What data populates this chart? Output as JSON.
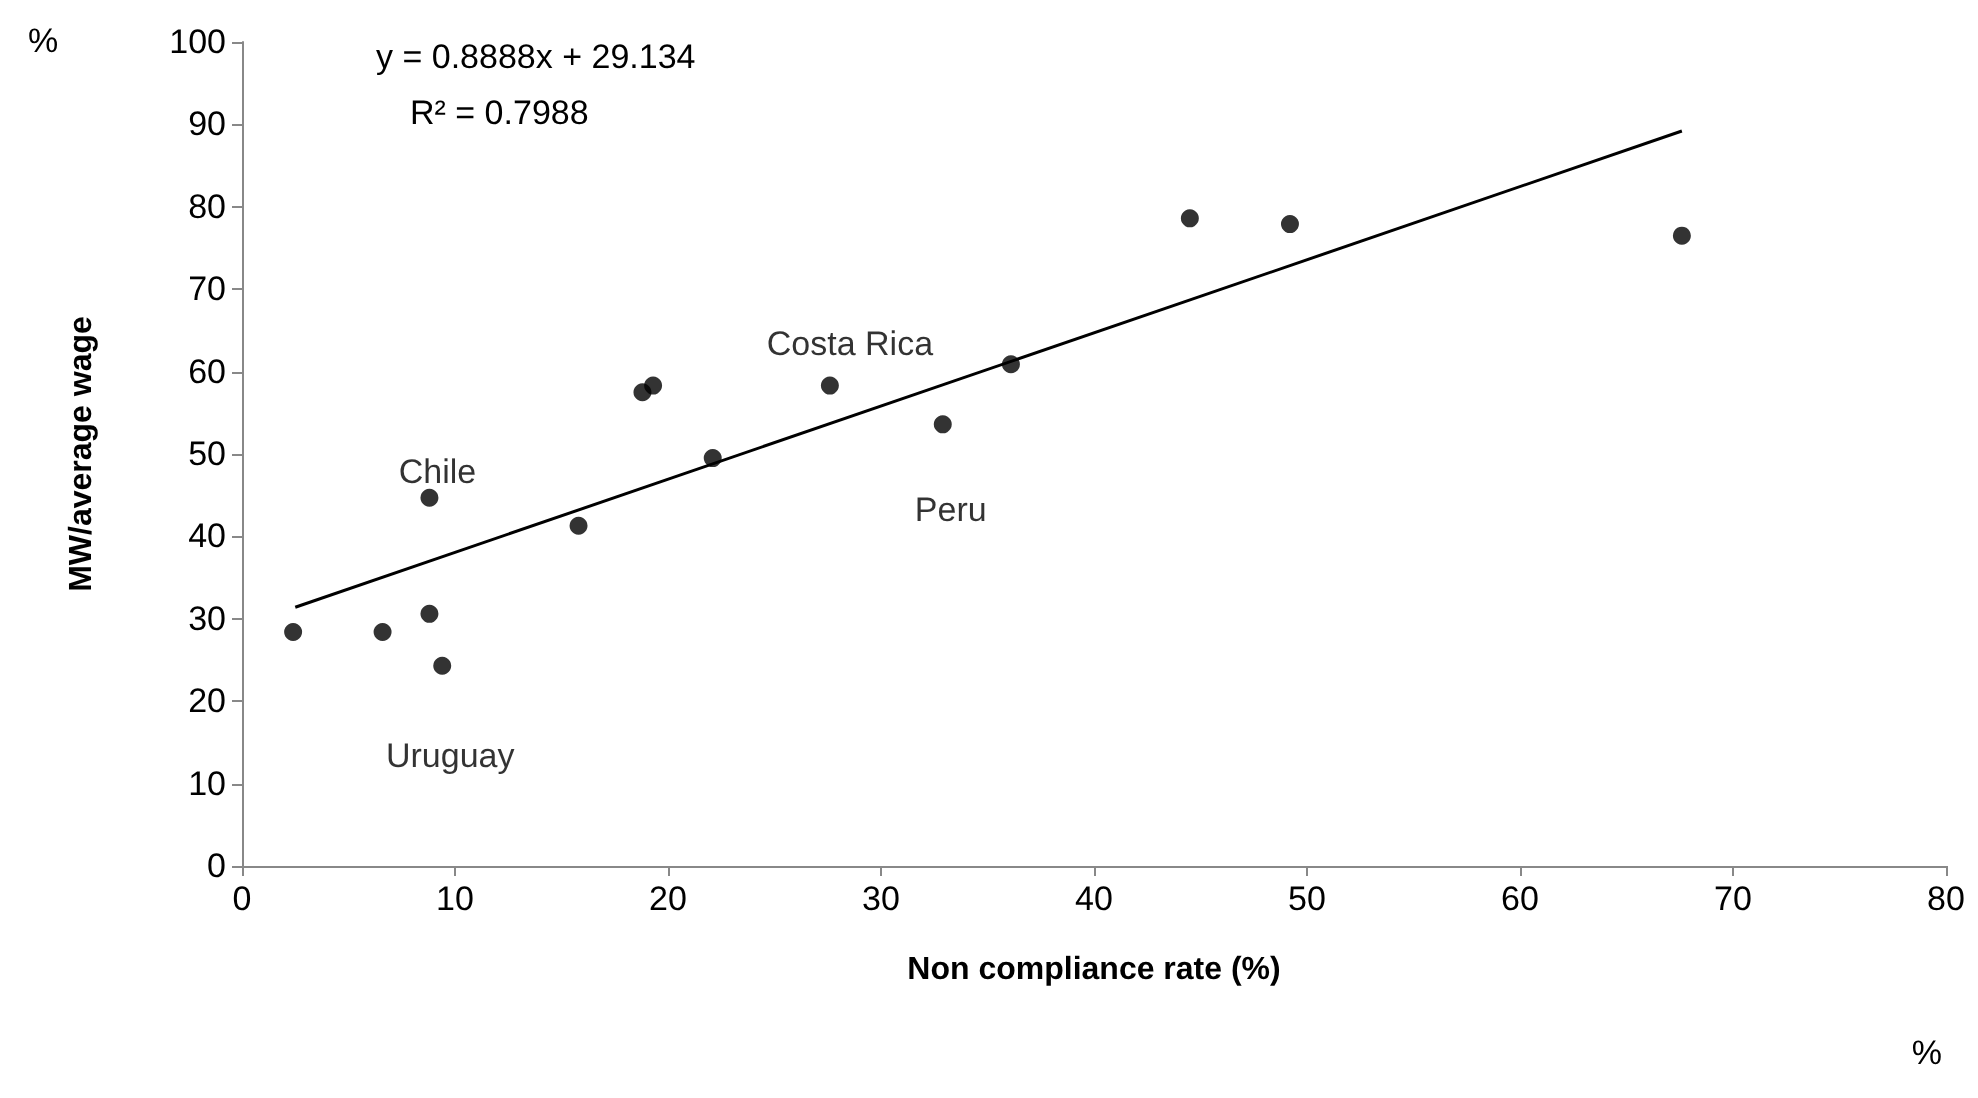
{
  "chart_data": {
    "type": "scatter",
    "xlabel": "Non compliance rate (%)",
    "ylabel": "MW/average wage",
    "xlim": [
      0,
      80
    ],
    "xticks": [
      0,
      10,
      20,
      30,
      40,
      50,
      60,
      70,
      80
    ],
    "ylim": [
      0,
      100
    ],
    "yticks": [
      0,
      10,
      20,
      30,
      40,
      50,
      60,
      70,
      80,
      90,
      100
    ],
    "grid": false,
    "marker": "circle",
    "series": [
      {
        "color": "#000000",
        "x": [
          2.4,
          6.6,
          8.8,
          8.8,
          9.4,
          15.8,
          18.8,
          19.3,
          22.1,
          27.6,
          32.9,
          36.1,
          44.5,
          49.2,
          67.6
        ],
        "values": [
          28.4,
          28.4,
          44.7,
          30.6,
          24.3,
          41.3,
          57.5,
          58.3,
          49.5,
          58.3,
          53.6,
          60.9,
          78.6,
          77.9,
          76.5
        ]
      },
      {
        "type": "line",
        "color": "#000000",
        "line_style": "solid",
        "marker": "none",
        "x": [
          2.5,
          67.6
        ],
        "values": [
          31.4,
          89.2
        ]
      }
    ],
    "annotations": [
      "y = 0.8888x + 29.134",
      "R² = 0.7988",
      {
        "text": "Chile",
        "x": 8.8,
        "y": 44.7
      },
      {
        "text": "Costa Rica",
        "x": 27.6,
        "y": 58.3
      },
      {
        "text": "Peru",
        "x": 32.9,
        "y": 53.6
      },
      {
        "text": "Uruguay",
        "x": 9.4,
        "y": 24.3
      },
      "%",
      "%"
    ]
  }
}
